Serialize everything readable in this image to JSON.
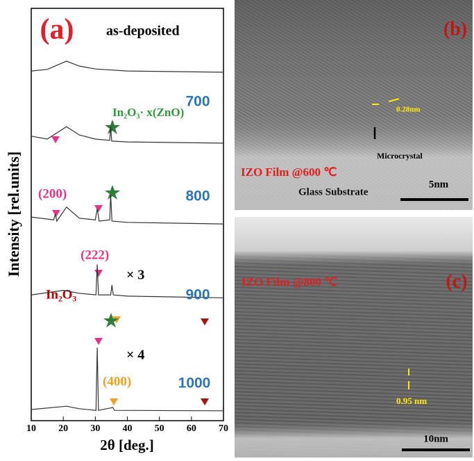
{
  "chart_data": {
    "type": "line",
    "panel_label": "(a)",
    "x_label": "2θ [deg.]",
    "y_label": "Intensity [rel.units]",
    "xlim": [
      10,
      70
    ],
    "xticks": [
      10,
      20,
      30,
      40,
      50,
      60,
      70
    ],
    "ylim": [
      0,
      100
    ],
    "series": [
      {
        "name": "as-deposited",
        "color": "#333333",
        "x": [
          10,
          15,
          21,
          25,
          30,
          40,
          70
        ],
        "values": [
          84.8,
          85.2,
          87.2,
          86.0,
          85.3,
          84.8,
          84.5
        ]
      },
      {
        "name": "700",
        "color": "#333333",
        "x": [
          10,
          15,
          21,
          25,
          30,
          34.5,
          34.8,
          35.1,
          40,
          70
        ],
        "values": [
          69.0,
          68.3,
          71.3,
          69.3,
          68.3,
          68.0,
          71.5,
          67.8,
          67.6,
          67.3
        ]
      },
      {
        "name": "800",
        "color": "#333333",
        "x": [
          10,
          17,
          17.5,
          18,
          21,
          25,
          30,
          30.6,
          31.2,
          34.5,
          34.8,
          35.2,
          40,
          70
        ],
        "values": [
          49.4,
          48.7,
          50.1,
          48.4,
          51.8,
          49.1,
          48.7,
          51.4,
          48.4,
          48.7,
          54.8,
          48.4,
          48.1,
          47.7
        ]
      },
      {
        "name": "900",
        "color": "#333333",
        "x": [
          10,
          20,
          25,
          30.2,
          30.6,
          31,
          34.8,
          35.2,
          35.6,
          40,
          70
        ],
        "values": [
          30.5,
          31.6,
          30.9,
          30.5,
          37.9,
          30.5,
          30.5,
          32.9,
          30.5,
          30.2,
          29.8
        ]
      },
      {
        "name": "1000",
        "color": "#333333",
        "x": [
          10,
          21,
          25,
          30.2,
          30.6,
          31,
          35.5,
          36,
          70
        ],
        "values": [
          2.7,
          3.5,
          2.9,
          2.5,
          17.7,
          2.5,
          3.2,
          2.5,
          2.4
        ]
      }
    ],
    "annotations": [
      "In₂O₃· x(ZnO)",
      "(200)",
      "(222)",
      "In₂O₃",
      "× 3",
      "× 4",
      "(400)"
    ]
  },
  "panels": {
    "b": {
      "label": "(b)",
      "spacing": "0.28nm",
      "feature": "Microcrystal",
      "film": "IZO Film @600 ℃",
      "substrate": "Glass Substrate",
      "scale": "5nm"
    },
    "c": {
      "label": "(c)",
      "film": "IZO Film @800 ℃",
      "spacing": "0.95 nm",
      "scale": "10nm"
    }
  }
}
